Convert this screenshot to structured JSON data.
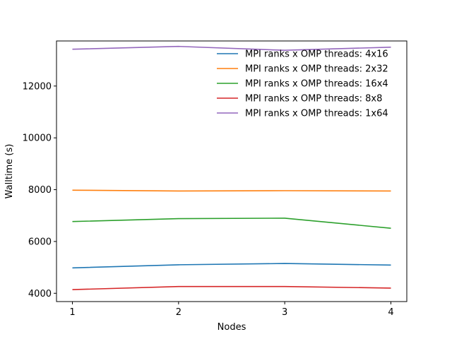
{
  "chart_data": {
    "type": "line",
    "title": "",
    "xlabel": "Nodes",
    "ylabel": "Walltime (s)",
    "x": [
      1,
      2,
      3,
      4
    ],
    "x_ticks": [
      1,
      2,
      3,
      4
    ],
    "y_ticks": [
      4000,
      6000,
      8000,
      10000,
      12000
    ],
    "xlim": [
      0.85,
      4.15
    ],
    "ylim": [
      3680,
      13740
    ],
    "grid": false,
    "legend_position": "top-right",
    "series": [
      {
        "name": "MPI ranks x OMP threads: 4x16",
        "color": "#1f77b4",
        "values": [
          4980,
          5100,
          5150,
          5090
        ]
      },
      {
        "name": "MPI ranks x OMP threads: 2x32",
        "color": "#ff7f0e",
        "values": [
          7980,
          7950,
          7960,
          7950
        ]
      },
      {
        "name": "MPI ranks x OMP threads: 16x4",
        "color": "#2ca02c",
        "values": [
          6770,
          6880,
          6900,
          6510
        ]
      },
      {
        "name": "MPI ranks x OMP threads: 8x8",
        "color": "#d62728",
        "values": [
          4140,
          4260,
          4260,
          4200
        ]
      },
      {
        "name": "MPI ranks x OMP threads: 1x64",
        "color": "#9467bd",
        "values": [
          13420,
          13530,
          13380,
          13500
        ]
      }
    ]
  }
}
